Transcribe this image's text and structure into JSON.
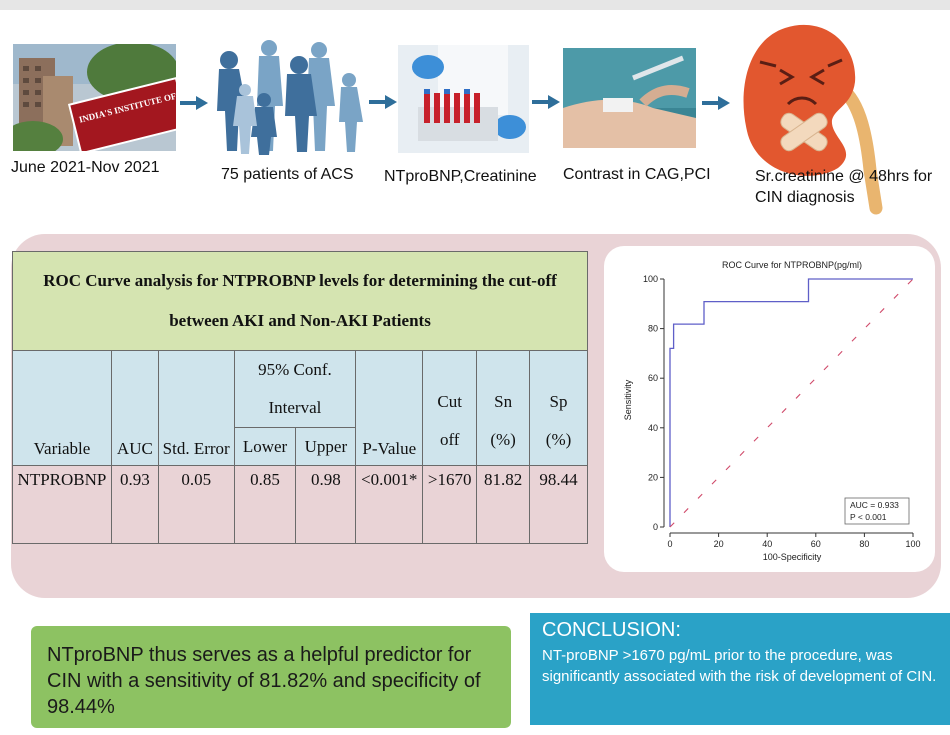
{
  "flow": {
    "steps": [
      {
        "caption": "June 2021-Nov 2021",
        "image": "hospital-building-photo"
      },
      {
        "caption": "75 patients of ACS",
        "image": "patient-silhouettes"
      },
      {
        "caption": "NTproBNP,Creatinine",
        "image": "lab-test-tubes-photo"
      },
      {
        "caption": "Contrast in CAG,PCI",
        "image": "catheter-procedure-photo"
      },
      {
        "caption": "Sr.creatinine @ 48hrs for CIN diagnosis",
        "image": "sad-kidney-cartoon"
      }
    ],
    "sign_text": "INDIA'S INSTITUTE OF MEDICAL SCIENCES",
    "arrow_color": "#2e6e9a"
  },
  "table": {
    "title": "ROC Curve analysis for NTPROBNP levels for determining the cut-off between AKI and Non-AKI Patients",
    "headers": {
      "variable": "Variable",
      "auc": "AUC",
      "std_error": "Std. Error",
      "conf_line1": "95% Conf.",
      "conf_line2": "Interval",
      "lower": "Lower",
      "upper": "Upper",
      "p_value": "P-Value",
      "cut_line1": "Cut",
      "cut_line2": "off",
      "sn_line1": "Sn",
      "sn_line2": "(%)",
      "sp_line1": "Sp",
      "sp_line2": "(%)"
    },
    "row": {
      "variable": "NTPROBNP",
      "auc": "0.93",
      "std_error": "0.05",
      "lower": "0.85",
      "upper": "0.98",
      "p_value": "<0.001*",
      "cut_off": ">1670",
      "sn": "81.82",
      "sp": "98.44"
    },
    "colors": {
      "title_bg": "#d5e4b1",
      "header_bg": "#cfe4ec",
      "panel_bg": "#e9d3d6"
    }
  },
  "chart_data": {
    "type": "line",
    "title": "ROC Curve for NTPROBNP(pg/ml)",
    "xlabel": "100-Specificity",
    "ylabel": "Sensitivity",
    "xlim": [
      0,
      100
    ],
    "ylim": [
      0,
      100
    ],
    "xticks": [
      "0",
      "20",
      "40",
      "60",
      "80",
      "100"
    ],
    "yticks": [
      "0",
      "20",
      "40",
      "60",
      "80",
      "100"
    ],
    "series": [
      {
        "values_x": [
          0,
          0,
          1.5,
          1.5,
          3,
          3,
          14,
          14,
          57,
          57,
          100
        ],
        "values_y": [
          0,
          72,
          72,
          81.8,
          81.8,
          81.8,
          81.8,
          90.9,
          90.9,
          100,
          100
        ],
        "color": "#5f5fc8",
        "style": "solid"
      },
      {
        "values_x": [
          0,
          100
        ],
        "values_y": [
          0,
          100
        ],
        "color": "#d04a6a",
        "style": "dashed"
      }
    ],
    "annotation": {
      "line1": "AUC = 0.933",
      "line2": "P < 0.001"
    }
  },
  "summary": {
    "text": "NTproBNP thus serves as a helpful predictor for CIN with a sensitivity of 81.82% and specificity of 98.44%"
  },
  "conclusion": {
    "heading": "CONCLUSION:",
    "text": "NT-proBNP >1670 pg/mL prior to the procedure, was significantly associated with the risk of development of CIN."
  }
}
